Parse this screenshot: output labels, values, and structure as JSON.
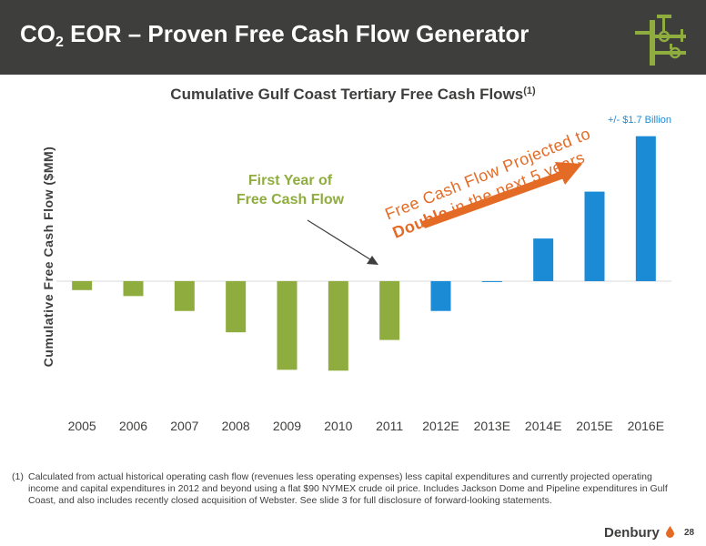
{
  "header": {
    "title_pre": "CO",
    "title_sub": "2",
    "title_post": " EOR – Proven Free Cash Flow Generator",
    "logo_icon": "pipeline-valve-icon"
  },
  "colors": {
    "header_bg": "#3e3f3d",
    "historical": "#8fad3f",
    "projected": "#1c8bd6",
    "arrow": "#e46b26"
  },
  "annotations": {
    "first_year_line1": "First Year of",
    "first_year_line2": "Free Cash Flow",
    "peak_label": "+/- $1.7 Billion",
    "projection_line1": "Free Cash Flow Projected to",
    "projection_bold": "Double",
    "projection_rest": " in the next 5 years"
  },
  "chart_data": {
    "type": "bar",
    "title": "Cumulative Gulf Coast Tertiary Free Cash Flows",
    "title_sup": "(1)",
    "ylabel": "Cumulative Free Cash Flow ($MM)",
    "xlabel": "",
    "categories": [
      "2005",
      "2006",
      "2007",
      "2008",
      "2009",
      "2010",
      "2011",
      "2012E",
      "2013E",
      "2014E",
      "2015E",
      "2016E"
    ],
    "values": [
      -105,
      -175,
      -350,
      -600,
      -1040,
      -1050,
      -690,
      -350,
      0,
      500,
      1050,
      1700
    ],
    "projected": [
      false,
      false,
      false,
      false,
      false,
      false,
      false,
      true,
      true,
      true,
      true,
      true
    ],
    "ylim": [
      -1100,
      1750
    ],
    "grid": false,
    "legend": "none"
  },
  "footnote": {
    "number": "(1)",
    "text": "Calculated from actual historical operating cash flow (revenues less operating expenses) less capital expenditures and currently projected operating income and capital expenditures in 2012 and beyond using a flat $90 NYMEX crude oil price.  Includes Jackson Dome and Pipeline expenditures in Gulf Coast, and also includes recently closed acquisition of Webster. See slide 3 for full disclosure of forward-looking statements."
  },
  "brand": {
    "name": "Denbury",
    "page_number": "28"
  }
}
